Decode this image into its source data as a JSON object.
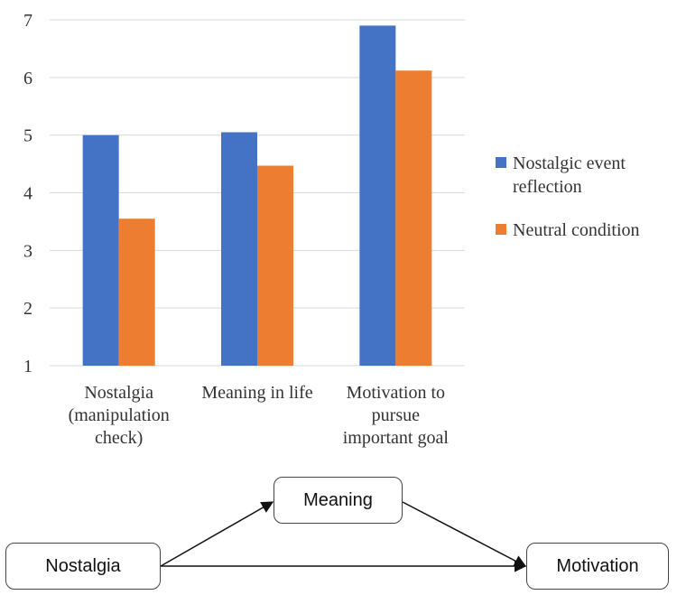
{
  "chart_data": {
    "type": "bar",
    "categories": [
      [
        "Nostalgia",
        "(manipulation",
        "check)"
      ],
      [
        "Meaning in life"
      ],
      [
        "Motivation to",
        "pursue",
        "important goal"
      ]
    ],
    "series": [
      {
        "name": "Nostalgic event reflection",
        "legend_lines": [
          "Nostalgic event",
          "reflection"
        ],
        "color": "#4472C4",
        "values": [
          5.0,
          5.05,
          6.9
        ]
      },
      {
        "name": "Neutral condition",
        "legend_lines": [
          "Neutral condition"
        ],
        "color": "#ED7D31",
        "values": [
          3.55,
          4.47,
          6.12
        ]
      }
    ],
    "ylim": [
      1,
      7
    ],
    "yticks": [
      1,
      2,
      3,
      4,
      5,
      6,
      7
    ],
    "grid": true,
    "legend": "right",
    "title": "",
    "xlabel": "",
    "ylabel": ""
  },
  "diagram": {
    "nodes": {
      "meaning": "Meaning",
      "nostalgia": "Nostalgia",
      "motivation": "Motivation"
    },
    "edges": [
      {
        "from": "nostalgia",
        "to": "meaning"
      },
      {
        "from": "meaning",
        "to": "motivation"
      },
      {
        "from": "nostalgia",
        "to": "motivation"
      }
    ]
  }
}
